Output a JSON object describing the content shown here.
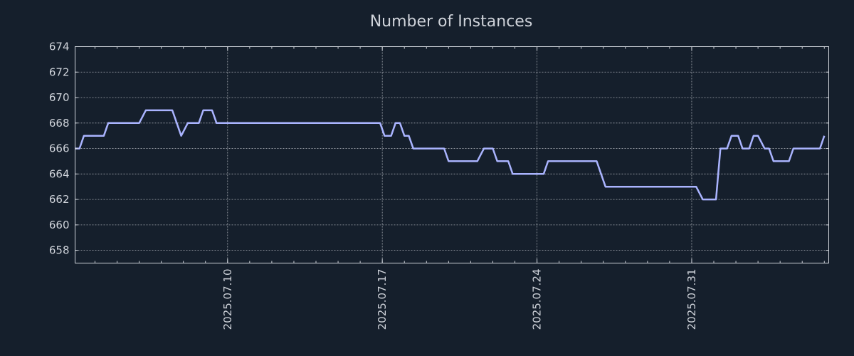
{
  "chart_data": {
    "type": "line",
    "title": "Number of Instances",
    "xlabel": "",
    "ylabel": "",
    "grid": true,
    "ylim": [
      657,
      674
    ],
    "yticks": [
      658,
      660,
      662,
      664,
      666,
      668,
      670,
      672,
      674
    ],
    "xlim": [
      -6.9,
      27.2
    ],
    "xticks": [
      {
        "x": 0,
        "label": "2025.07.10"
      },
      {
        "x": 7,
        "label": "2025.07.17"
      },
      {
        "x": 14,
        "label": "2025.07.24"
      },
      {
        "x": 21,
        "label": "2025.07.31"
      }
    ],
    "series": [
      {
        "name": "Number of Instances",
        "color": "#aab4ff",
        "points": [
          [
            -6.9,
            666
          ],
          [
            -6.7,
            666
          ],
          [
            -6.5,
            667
          ],
          [
            -5.6,
            667
          ],
          [
            -5.4,
            668
          ],
          [
            -4.0,
            668
          ],
          [
            -3.7,
            669
          ],
          [
            -2.5,
            669
          ],
          [
            -2.1,
            667
          ],
          [
            -1.8,
            668
          ],
          [
            -1.3,
            668
          ],
          [
            -1.1,
            669
          ],
          [
            -0.7,
            669
          ],
          [
            -0.5,
            668
          ],
          [
            6.9,
            668
          ],
          [
            7.1,
            667
          ],
          [
            7.4,
            667
          ],
          [
            7.6,
            668
          ],
          [
            7.8,
            668
          ],
          [
            8.0,
            667
          ],
          [
            8.2,
            667
          ],
          [
            8.4,
            666
          ],
          [
            9.8,
            666
          ],
          [
            10.0,
            665
          ],
          [
            11.3,
            665
          ],
          [
            11.6,
            666
          ],
          [
            12.0,
            666
          ],
          [
            12.2,
            665
          ],
          [
            12.7,
            665
          ],
          [
            12.9,
            664
          ],
          [
            14.3,
            664
          ],
          [
            14.5,
            665
          ],
          [
            16.7,
            665
          ],
          [
            17.1,
            663
          ],
          [
            21.2,
            663
          ],
          [
            21.5,
            662
          ],
          [
            22.1,
            662
          ],
          [
            22.3,
            666
          ],
          [
            22.6,
            666
          ],
          [
            22.8,
            667
          ],
          [
            23.1,
            667
          ],
          [
            23.3,
            666
          ],
          [
            23.6,
            666
          ],
          [
            23.8,
            667
          ],
          [
            24.0,
            667
          ],
          [
            24.3,
            666
          ],
          [
            24.5,
            666
          ],
          [
            24.7,
            665
          ],
          [
            25.4,
            665
          ],
          [
            25.6,
            666
          ],
          [
            26.8,
            666
          ],
          [
            27.0,
            667
          ]
        ]
      }
    ]
  }
}
